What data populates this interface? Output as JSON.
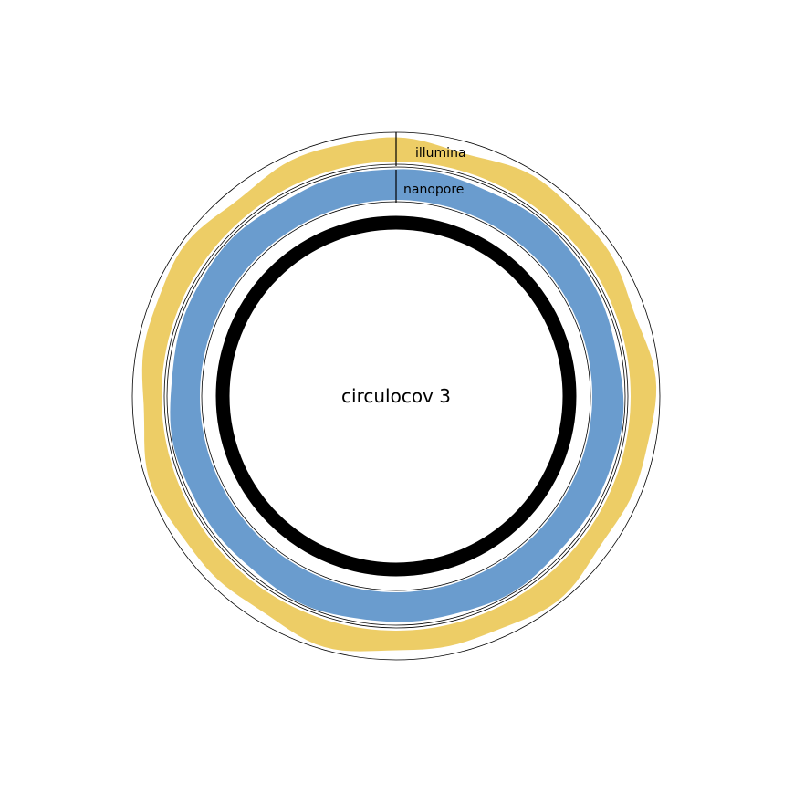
{
  "diagram": {
    "title": "circulocov 3",
    "tracks": [
      {
        "name": "illumina",
        "color": "#edcd66"
      },
      {
        "name": "nanopore",
        "color": "#6a9cce"
      }
    ],
    "genome_ring_color": "#000000"
  }
}
